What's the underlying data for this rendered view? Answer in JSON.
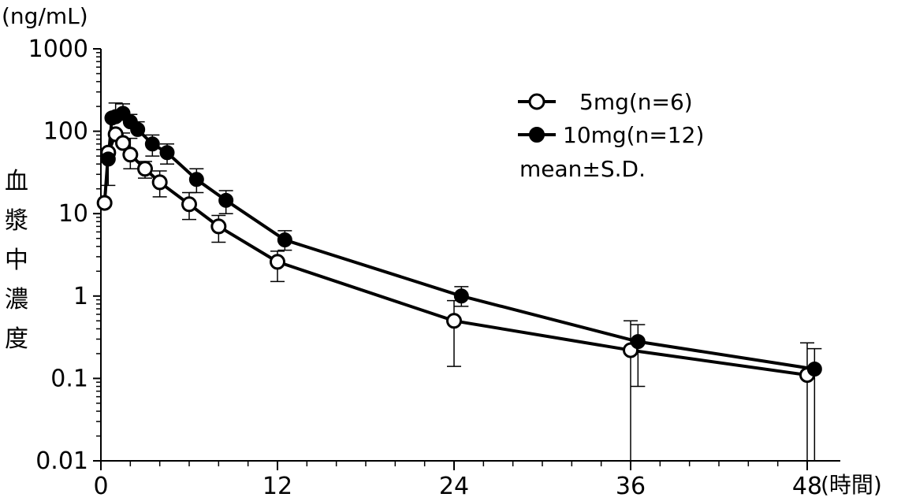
{
  "chart_data": {
    "type": "line",
    "title": "",
    "y_unit": "(ng/mL)",
    "x_unit": "(時間)",
    "ylabel_chars": [
      "血",
      "漿",
      "中",
      "濃",
      "度"
    ],
    "yscale": "log",
    "ylim": [
      0.01,
      1000
    ],
    "xlim": [
      0,
      48
    ],
    "y_ticks": [
      {
        "value": 1000,
        "label": "1000"
      },
      {
        "value": 100,
        "label": "100"
      },
      {
        "value": 10,
        "label": "10"
      },
      {
        "value": 1,
        "label": "1"
      },
      {
        "value": 0.1,
        "label": "0.1"
      },
      {
        "value": 0.01,
        "label": "0.01"
      }
    ],
    "x_ticks": [
      {
        "value": 0,
        "label": "0"
      },
      {
        "value": 12,
        "label": "12"
      },
      {
        "value": 24,
        "label": "24"
      },
      {
        "value": 36,
        "label": "36"
      },
      {
        "value": 48,
        "label": "48"
      }
    ],
    "x_minor_step": 2,
    "series": [
      {
        "name": "5mg(n=6)",
        "marker": "open-circle",
        "x": [
          0.25,
          0.5,
          1.0,
          1.5,
          2.0,
          3.0,
          4.0,
          6.0,
          8.0,
          12.0,
          24.0,
          36.0,
          48.0
        ],
        "y": [
          13.5,
          55,
          92,
          72,
          52,
          35,
          24,
          13,
          7.0,
          2.6,
          0.5,
          0.22,
          0.11
        ],
        "err_hi": [
          null,
          null,
          null,
          95,
          82,
          43,
          33,
          18,
          9.5,
          3.5,
          0.88,
          0.5,
          0.27
        ],
        "err_lo": [
          null,
          null,
          null,
          null,
          35,
          27,
          16,
          8.5,
          4.5,
          1.5,
          0.14,
          0.008,
          0.008
        ]
      },
      {
        "name": "10mg(n=12)",
        "marker": "filled-circle",
        "x": [
          0.5,
          0.75,
          1.0,
          1.5,
          2.0,
          2.5,
          3.5,
          4.5,
          6.5,
          8.5,
          12.5,
          24.5,
          36.5,
          48.5
        ],
        "y": [
          46,
          145,
          150,
          165,
          130,
          105,
          70,
          55,
          26,
          14.5,
          4.8,
          1.0,
          0.28,
          0.13
        ],
        "err_hi": [
          null,
          null,
          220,
          215,
          160,
          130,
          90,
          70,
          35,
          19,
          6.2,
          1.3,
          0.45,
          0.23
        ],
        "err_lo": [
          22,
          null,
          null,
          null,
          null,
          null,
          50,
          40,
          18,
          10,
          3.6,
          0.75,
          0.08,
          0.008
        ]
      }
    ],
    "legend": {
      "entries": [
        {
          "label": "5mg(n=6)",
          "marker": "open-circle"
        },
        {
          "label": "10mg(n=12)",
          "marker": "filled-circle"
        }
      ],
      "note": "mean±S.D.",
      "position": "top-right"
    }
  }
}
